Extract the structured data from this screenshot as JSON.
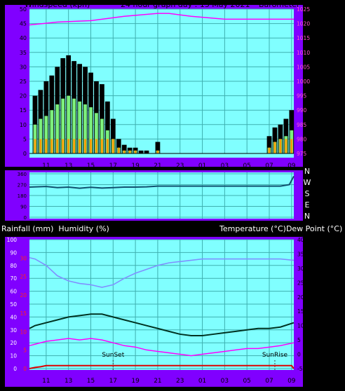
{
  "header": {
    "left": "Windspeed (kph)",
    "center": "24 hour graph day : 15 May 2021",
    "right": "Barometer (hpa)"
  },
  "hour_ticks": [
    "11",
    "13",
    "15",
    "17",
    "19",
    "21",
    "23",
    "01",
    "03",
    "05",
    "07",
    "09"
  ],
  "colors": {
    "frame": "#8000ff",
    "plot_bg": "#80ffff",
    "grid": "#3fb0b0",
    "gust": "#000000",
    "wind": "#7cf07c",
    "wind_low": "#ff9900",
    "barometer": "#ff00ff",
    "direction": "#10506e",
    "humidity": "#8090ff",
    "temperature": "#003322",
    "dewpoint": "#ff00ff",
    "rain": "#dd0000",
    "axis_text": "#000000",
    "pink_text": "#ff55cc",
    "red_text": "#ff2222"
  },
  "chart_data": [
    {
      "type": "bar",
      "name_text": "wind",
      "ylabel": "Windspeed (kph)",
      "y2label": "Barometer (hpa)",
      "ylim": [
        0,
        50
      ],
      "y_ticks": [
        "0",
        "5",
        "10",
        "15",
        "20",
        "25",
        "30",
        "35",
        "40",
        "45",
        "50"
      ],
      "y2lim": [
        975,
        1025
      ],
      "y2_ticks": [
        "975",
        "980",
        "985",
        "990",
        "995",
        "1000",
        "1005",
        "1010",
        "1015",
        "1020",
        "1025"
      ],
      "x_range_hours": [
        9.5,
        33.2
      ],
      "series": [
        {
          "name": "gust",
          "x": [
            10,
            10.5,
            11,
            11.5,
            12,
            12.5,
            13,
            13.5,
            14,
            14.5,
            15,
            15.5,
            16,
            16.5,
            17,
            17.5,
            18,
            18.5,
            19,
            19.5,
            20,
            20.5,
            21,
            21.5,
            22,
            22.5,
            23,
            23.5,
            24,
            24.5,
            25,
            25.5,
            26,
            26.5,
            27,
            27.5,
            28,
            28.5,
            29,
            29.5,
            30,
            30.5,
            31,
            31.5,
            32,
            32.5,
            33
          ],
          "values": [
            20,
            22,
            25,
            27,
            30,
            33,
            34,
            32,
            31,
            30,
            28,
            25,
            24,
            18,
            12,
            5,
            3,
            2,
            2,
            1,
            1,
            0,
            4,
            0,
            0,
            0,
            0,
            0,
            0,
            0,
            0,
            0,
            0,
            0,
            0,
            0,
            0,
            0,
            0,
            0,
            0,
            0,
            6,
            9,
            10,
            12,
            15
          ]
        },
        {
          "name": "wind",
          "x": [
            10,
            10.5,
            11,
            11.5,
            12,
            12.5,
            13,
            13.5,
            14,
            14.5,
            15,
            15.5,
            16,
            16.5,
            17,
            17.5,
            18,
            18.5,
            19,
            19.5,
            20,
            20.5,
            21,
            21.5,
            22,
            22.5,
            23,
            23.5,
            24,
            24.5,
            25,
            25.5,
            26,
            26.5,
            27,
            27.5,
            28,
            28.5,
            29,
            29.5,
            30,
            30.5,
            31,
            31.5,
            32,
            32.5,
            33
          ],
          "values": [
            10,
            12,
            13,
            15,
            17,
            19,
            20,
            19,
            18,
            17,
            16,
            14,
            12,
            8,
            5,
            2,
            1,
            1,
            1,
            0,
            0,
            0,
            1,
            0,
            0,
            0,
            0,
            0,
            0,
            0,
            0,
            0,
            0,
            0,
            0,
            0,
            0,
            0,
            0,
            0,
            0,
            0,
            2,
            4,
            5,
            6,
            8
          ]
        },
        {
          "name": "barometer",
          "axis": "y2",
          "x": [
            9.5,
            12,
            15,
            18,
            21,
            22,
            24,
            27,
            30,
            33.2
          ],
          "values": [
            1019.5,
            1020.5,
            1021,
            1022.5,
            1023.5,
            1023.5,
            1022.5,
            1021.5,
            1021.5,
            1021.5
          ]
        }
      ]
    },
    {
      "type": "line",
      "name_text": "wind direction",
      "ylim": [
        0,
        360
      ],
      "y_ticks": [
        "0",
        "90",
        "180",
        "270",
        "360"
      ],
      "right_labels": [
        "N",
        "W",
        "S",
        "E",
        "N"
      ],
      "series": [
        {
          "name": "direction",
          "x": [
            9.5,
            11,
            12,
            13,
            14,
            15,
            16,
            17,
            18,
            19,
            20,
            21,
            24,
            28,
            32,
            32.8,
            33.2
          ],
          "values": [
            250,
            255,
            245,
            250,
            240,
            248,
            242,
            245,
            250,
            250,
            252,
            258,
            258,
            258,
            258,
            270,
            340
          ]
        }
      ]
    },
    {
      "type": "line",
      "name_text": "temperature humidity rainfall",
      "left_labels": "Rainfall (mm)  Humidity (%)",
      "right_label": "Temperature (°C)Dew Point (°C)",
      "ylim_humidity": [
        0,
        100
      ],
      "humidity_ticks": [
        "0",
        "10",
        "20",
        "30",
        "40",
        "50",
        "60",
        "70",
        "80",
        "90",
        "100"
      ],
      "rain_ticks": [
        "0",
        "5",
        "10",
        "15",
        "20",
        "25",
        "30"
      ],
      "ylim_temp": [
        -5,
        40
      ],
      "temp_ticks": [
        "-5",
        "0",
        "5",
        "10",
        "15",
        "20",
        "25",
        "30",
        "35",
        "40"
      ],
      "annotations": [
        {
          "text": "SunSet",
          "hour": 17.0
        },
        {
          "text": "SunRise",
          "hour": 31.5
        }
      ],
      "series": [
        {
          "name": "humidity",
          "x": [
            9.5,
            10,
            11,
            12,
            13,
            14,
            15,
            16,
            17,
            18,
            19,
            20,
            21,
            22,
            23,
            24,
            25,
            26,
            27,
            28,
            29,
            30,
            31,
            32,
            33.2
          ],
          "values": [
            86,
            85,
            80,
            72,
            68,
            66,
            65,
            63,
            65,
            70,
            74,
            77,
            80,
            82,
            83,
            84,
            85,
            85,
            85,
            85,
            85,
            85,
            85,
            85,
            84
          ]
        },
        {
          "name": "temperature",
          "x": [
            9.5,
            10,
            11,
            12,
            13,
            14,
            15,
            16,
            17,
            18,
            19,
            20,
            21,
            22,
            23,
            24,
            25,
            26,
            27,
            28,
            29,
            30,
            31,
            32,
            33.2
          ],
          "values": [
            9,
            10,
            11,
            12,
            13,
            13.5,
            14,
            14,
            13,
            12,
            11,
            10,
            9,
            8,
            7,
            6.5,
            6.5,
            7,
            7.5,
            8,
            8.5,
            9,
            9,
            9.5,
            11
          ]
        },
        {
          "name": "dewpoint",
          "x": [
            9.5,
            10,
            11,
            12,
            13,
            14,
            15,
            16,
            17,
            18,
            19,
            20,
            21,
            22,
            23,
            24,
            25,
            26,
            27,
            28,
            29,
            30,
            31,
            32,
            33.2
          ],
          "values": [
            3,
            3.5,
            4.5,
            5,
            5.5,
            5,
            5.5,
            5,
            4,
            3,
            2.5,
            1.5,
            1,
            0.5,
            0,
            -0.5,
            0,
            0.5,
            1,
            1.5,
            2,
            2,
            2.5,
            3,
            4
          ]
        },
        {
          "name": "rainfall",
          "x": [
            9.5,
            10,
            10.5,
            11,
            15,
            20,
            25,
            30,
            32,
            33,
            33.2
          ],
          "values": [
            0,
            0.3,
            0.5,
            0.8,
            0.8,
            0.8,
            0.8,
            0.8,
            0.8,
            0.8,
            0
          ]
        }
      ]
    }
  ]
}
